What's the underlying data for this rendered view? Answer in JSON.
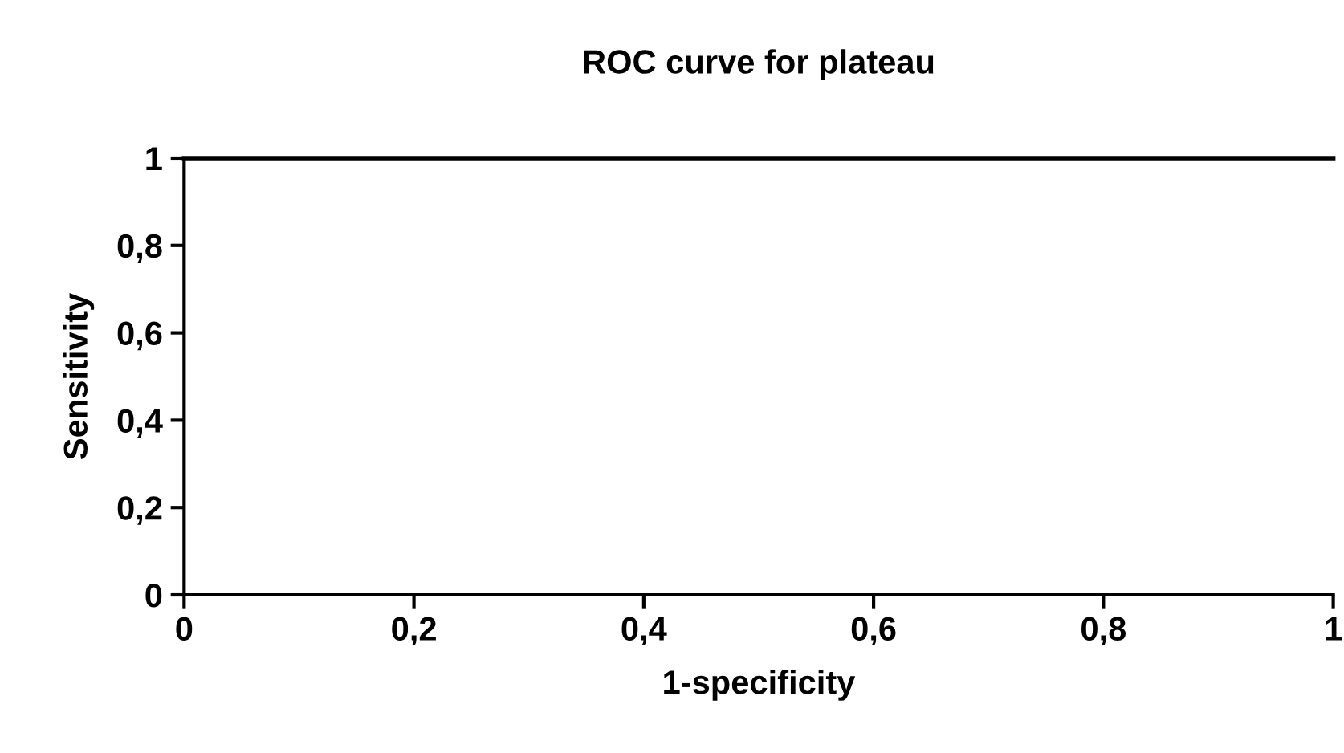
{
  "chart_data": {
    "type": "line",
    "title": "ROC curve for plateau",
    "xlabel": "1-specificity",
    "ylabel": "Sensitivity",
    "x": [
      0,
      1
    ],
    "series": [
      {
        "color": "#000000",
        "values": [
          1,
          1
        ]
      }
    ],
    "xlim": [
      0,
      1
    ],
    "ylim": [
      0,
      1
    ],
    "xticks": [
      0,
      {
        "value": 0.2,
        "label": "0,2"
      },
      {
        "value": 0.4,
        "label": "0,4"
      },
      {
        "value": 0.6,
        "label": "0,6"
      },
      {
        "value": 0.8,
        "label": "0,8"
      },
      1
    ],
    "yticks": [
      0,
      {
        "value": 0.2,
        "label": "0,2"
      },
      {
        "value": 0.4,
        "label": "0,4"
      },
      {
        "value": 0.6,
        "label": "0,6"
      },
      {
        "value": 0.8,
        "label": "0,8"
      },
      1
    ],
    "grid": false,
    "legend": false,
    "marker": "none",
    "line_style": "solid"
  }
}
